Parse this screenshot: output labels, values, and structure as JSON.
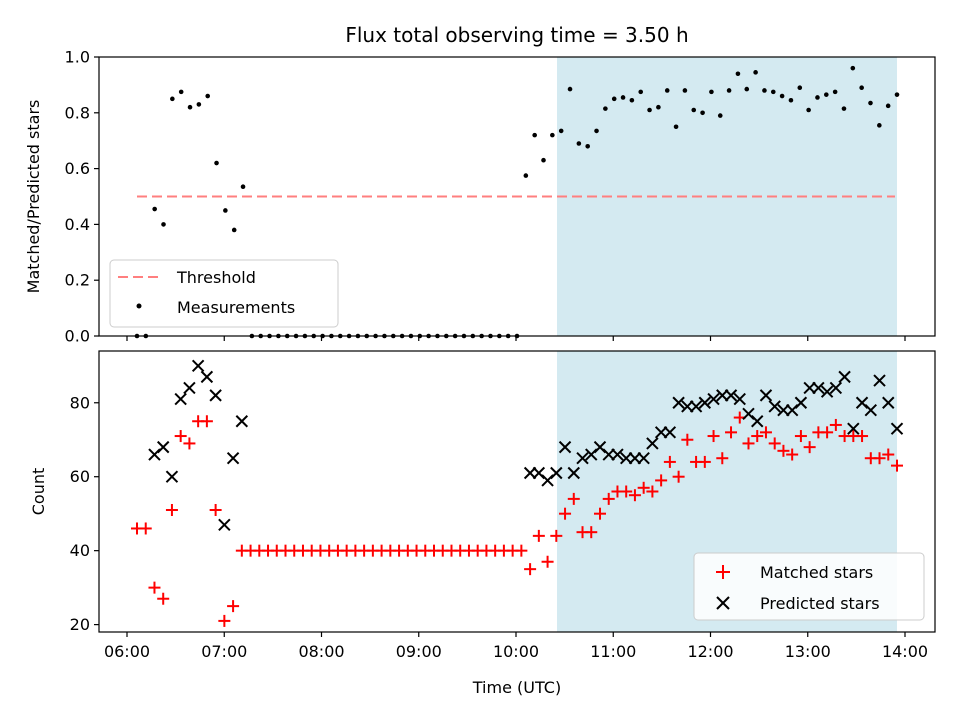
{
  "figure": {
    "title": "Flux total observing time = 3.50 h",
    "xlabel": "Time (UTC)",
    "xticks": [
      "06:00",
      "07:00",
      "08:00",
      "09:00",
      "10:00",
      "11:00",
      "12:00",
      "13:00",
      "14:00"
    ]
  },
  "colors": {
    "background": "#ffffff",
    "shaded": "#d4eaf1",
    "threshold": "#ff7f7f",
    "measurements": "#000000",
    "matched": "#ff0000",
    "predicted": "#000000"
  },
  "chart_data": [
    {
      "type": "scatter",
      "ylabel": "Matched/Predicted stars",
      "xlim": [
        "05:42",
        "14:22"
      ],
      "ylim": [
        0,
        1.0
      ],
      "yticks": [
        "0.0",
        "0.2",
        "0.4",
        "0.6",
        "0.8",
        "1.0"
      ],
      "shaded_region": [
        "10:26",
        "13:55"
      ],
      "threshold": {
        "name": "Threshold",
        "y": 0.5,
        "x": [
          "06:06",
          "13:55"
        ]
      },
      "legend": {
        "position": "lower-left",
        "entries": [
          "Threshold",
          "Measurements"
        ]
      },
      "series": [
        {
          "name": "Measurements",
          "points": [
            [
              "06:06",
              0.0
            ],
            [
              "06:12",
              0.0
            ],
            [
              "06:17",
              0.455
            ],
            [
              "06:23",
              0.4
            ],
            [
              "06:29",
              0.85
            ],
            [
              "06:35",
              0.875
            ],
            [
              "06:41",
              0.82
            ],
            [
              "06:47",
              0.83
            ],
            [
              "06:52",
              0.86
            ],
            [
              "06:58",
              0.62
            ],
            [
              "07:04",
              0.45
            ],
            [
              "07:10",
              0.38
            ],
            [
              "07:15",
              0.535
            ],
            [
              "07:21",
              0
            ],
            [
              "07:27",
              0
            ],
            [
              "07:33",
              0
            ],
            [
              "07:39",
              0
            ],
            [
              "07:44",
              0
            ],
            [
              "07:50",
              0
            ],
            [
              "07:56",
              0
            ],
            [
              "08:02",
              0
            ],
            [
              "08:08",
              0
            ],
            [
              "08:14",
              0
            ],
            [
              "08:20",
              0
            ],
            [
              "08:26",
              0
            ],
            [
              "08:32",
              0
            ],
            [
              "08:38",
              0
            ],
            [
              "08:44",
              0
            ],
            [
              "08:50",
              0
            ],
            [
              "08:56",
              0
            ],
            [
              "09:02",
              0
            ],
            [
              "09:08",
              0
            ],
            [
              "09:14",
              0
            ],
            [
              "09:20",
              0
            ],
            [
              "09:26",
              0
            ],
            [
              "09:32",
              0
            ],
            [
              "09:38",
              0
            ],
            [
              "09:44",
              0
            ],
            [
              "09:50",
              0
            ],
            [
              "09:56",
              0
            ],
            [
              "10:02",
              0
            ],
            [
              "10:08",
              0
            ],
            [
              "10:14",
              0
            ],
            [
              "10:26",
              0
            ],
            [
              "10:32",
              0.575
            ],
            [
              "10:38",
              0.72
            ],
            [
              "10:44",
              0.63
            ],
            [
              "10:50",
              0.72
            ],
            [
              "10:56",
              0.735
            ],
            [
              "11:01",
              0.885
            ],
            [
              "11:07",
              0.69
            ],
            [
              "11:13",
              0.68
            ],
            [
              "11:19",
              0.735
            ],
            [
              "11:25",
              0.815
            ],
            [
              "11:31",
              0.85
            ],
            [
              "11:37",
              0.855
            ],
            [
              "11:42",
              0.845
            ],
            [
              "11:48",
              0.875
            ],
            [
              "11:54",
              0.81
            ],
            [
              "12:00",
              0.82
            ],
            [
              "12:06",
              0.88
            ],
            [
              "12:12",
              0.75
            ],
            [
              "12:17",
              0.88
            ],
            [
              "12:23",
              0.81
            ],
            [
              "12:29",
              0.8
            ],
            [
              "12:35",
              0.875
            ],
            [
              "12:41",
              0.79
            ],
            [
              "12:47",
              0.88
            ],
            [
              "12:53",
              0.94
            ],
            [
              "12:58",
              0.885
            ],
            [
              "13:04",
              0.945
            ],
            [
              "13:10",
              0.88
            ],
            [
              "13:16",
              0.875
            ],
            [
              "13:22",
              0.86
            ],
            [
              "13:28",
              0.845
            ],
            [
              "13:34",
              0.89
            ],
            [
              "13:40",
              0.81
            ],
            [
              "13:46",
              0.855
            ],
            [
              "13:51",
              0.865
            ],
            [
              "13:57",
              0.875
            ],
            [
              "14:03",
              0.815
            ],
            [
              "14:09",
              0.96
            ],
            [
              "14:15",
              0.89
            ],
            [
              "14:21",
              0.835
            ],
            [
              "14:27",
              0.755
            ],
            [
              "14:33",
              0.825
            ],
            [
              "14:39",
              0.865
            ]
          ]
        }
      ]
    },
    {
      "type": "scatter",
      "ylabel": "Count",
      "xlim": [
        "05:42",
        "14:22"
      ],
      "ylim": [
        18,
        94
      ],
      "yticks": [
        "20",
        "40",
        "60",
        "80"
      ],
      "shaded_region": [
        "10:26",
        "13:55"
      ],
      "legend": {
        "position": "lower-right",
        "entries": [
          "Matched stars",
          "Predicted stars"
        ]
      },
      "series": [
        {
          "name": "Matched stars",
          "marker": "+",
          "points": [
            [
              "06:06",
              46
            ],
            [
              "06:12",
              46
            ],
            [
              "06:17",
              30
            ],
            [
              "06:23",
              27
            ],
            [
              "06:29",
              51
            ],
            [
              "06:35",
              71
            ],
            [
              "06:41",
              69
            ],
            [
              "06:47",
              75
            ],
            [
              "06:52",
              75
            ],
            [
              "06:58",
              51
            ],
            [
              "07:04",
              21
            ],
            [
              "07:10",
              25
            ],
            [
              "07:15",
              40
            ],
            [
              "07:21",
              40
            ],
            [
              "07:27",
              40
            ],
            [
              "07:33",
              40
            ],
            [
              "07:39",
              40
            ],
            [
              "07:44",
              40
            ],
            [
              "07:50",
              40
            ],
            [
              "07:56",
              40
            ],
            [
              "08:02",
              40
            ],
            [
              "08:08",
              40
            ],
            [
              "08:14",
              40
            ],
            [
              "08:20",
              40
            ],
            [
              "08:26",
              40
            ],
            [
              "08:32",
              40
            ],
            [
              "08:38",
              40
            ],
            [
              "08:44",
              40
            ],
            [
              "08:50",
              40
            ],
            [
              "08:56",
              40
            ],
            [
              "09:02",
              40
            ],
            [
              "09:08",
              40
            ],
            [
              "09:14",
              40
            ],
            [
              "09:20",
              40
            ],
            [
              "09:26",
              40
            ],
            [
              "09:32",
              40
            ],
            [
              "09:38",
              40
            ],
            [
              "09:44",
              40
            ],
            [
              "09:50",
              40
            ],
            [
              "09:56",
              40
            ],
            [
              "10:02",
              40
            ],
            [
              "10:08",
              40
            ],
            [
              "10:14",
              40
            ],
            [
              "10:20",
              40
            ],
            [
              "10:26",
              40
            ],
            [
              "10:32",
              35
            ],
            [
              "10:38",
              44
            ],
            [
              "10:44",
              37
            ],
            [
              "10:50",
              44
            ],
            [
              "10:56",
              50
            ],
            [
              "11:01",
              54
            ],
            [
              "11:07",
              45
            ],
            [
              "11:13",
              45
            ],
            [
              "11:19",
              50
            ],
            [
              "11:25",
              54
            ],
            [
              "11:31",
              56
            ],
            [
              "11:37",
              56
            ],
            [
              "11:42",
              55
            ],
            [
              "11:48",
              57
            ],
            [
              "11:54",
              56
            ],
            [
              "12:00",
              59
            ],
            [
              "12:06",
              64
            ],
            [
              "12:12",
              60
            ],
            [
              "12:17",
              70
            ],
            [
              "12:23",
              64
            ],
            [
              "12:29",
              64
            ],
            [
              "12:35",
              71
            ],
            [
              "12:41",
              65
            ],
            [
              "12:47",
              72
            ],
            [
              "12:53",
              76
            ],
            [
              "12:58",
              69
            ],
            [
              "13:04",
              71
            ],
            [
              "13:10",
              72
            ],
            [
              "13:16",
              69
            ],
            [
              "13:22",
              67
            ],
            [
              "13:28",
              66
            ],
            [
              "13:34",
              71
            ],
            [
              "13:40",
              68
            ],
            [
              "13:46",
              72
            ],
            [
              "13:51",
              72
            ],
            [
              "13:57",
              74
            ],
            [
              "14:03",
              71
            ],
            [
              "14:09",
              71
            ],
            [
              "14:15",
              71
            ],
            [
              "14:21",
              65
            ],
            [
              "14:27",
              65
            ],
            [
              "14:33",
              66
            ],
            [
              "14:39",
              63
            ]
          ]
        },
        {
          "name": "Predicted stars",
          "marker": "x",
          "points": [
            [
              "06:17",
              66
            ],
            [
              "06:23",
              68
            ],
            [
              "06:29",
              60
            ],
            [
              "06:35",
              81
            ],
            [
              "06:41",
              84
            ],
            [
              "06:47",
              90
            ],
            [
              "06:52",
              87
            ],
            [
              "06:58",
              82
            ],
            [
              "07:04",
              47
            ],
            [
              "07:10",
              65
            ],
            [
              "07:15",
              75
            ],
            [
              "10:32",
              61
            ],
            [
              "10:38",
              61
            ],
            [
              "10:44",
              59
            ],
            [
              "10:50",
              61
            ],
            [
              "10:56",
              68
            ],
            [
              "11:01",
              61
            ],
            [
              "11:07",
              65
            ],
            [
              "11:13",
              66
            ],
            [
              "11:19",
              68
            ],
            [
              "11:25",
              66
            ],
            [
              "11:31",
              66
            ],
            [
              "11:37",
              65
            ],
            [
              "11:42",
              65
            ],
            [
              "11:48",
              65
            ],
            [
              "11:54",
              69
            ],
            [
              "12:00",
              72
            ],
            [
              "12:06",
              72
            ],
            [
              "12:12",
              80
            ],
            [
              "12:17",
              79
            ],
            [
              "12:23",
              79
            ],
            [
              "12:29",
              80
            ],
            [
              "12:35",
              81
            ],
            [
              "12:41",
              82
            ],
            [
              "12:47",
              82
            ],
            [
              "12:53",
              81
            ],
            [
              "12:58",
              77
            ],
            [
              "13:04",
              75
            ],
            [
              "13:10",
              82
            ],
            [
              "13:16",
              79
            ],
            [
              "13:22",
              78
            ],
            [
              "13:28",
              78
            ],
            [
              "13:34",
              80
            ],
            [
              "13:40",
              84
            ],
            [
              "13:46",
              84
            ],
            [
              "13:51",
              83
            ],
            [
              "13:57",
              84
            ],
            [
              "14:03",
              87
            ],
            [
              "14:09",
              73
            ],
            [
              "14:15",
              80
            ],
            [
              "14:21",
              78
            ],
            [
              "14:27",
              86
            ],
            [
              "14:33",
              80
            ],
            [
              "14:39",
              73
            ]
          ]
        }
      ]
    }
  ]
}
